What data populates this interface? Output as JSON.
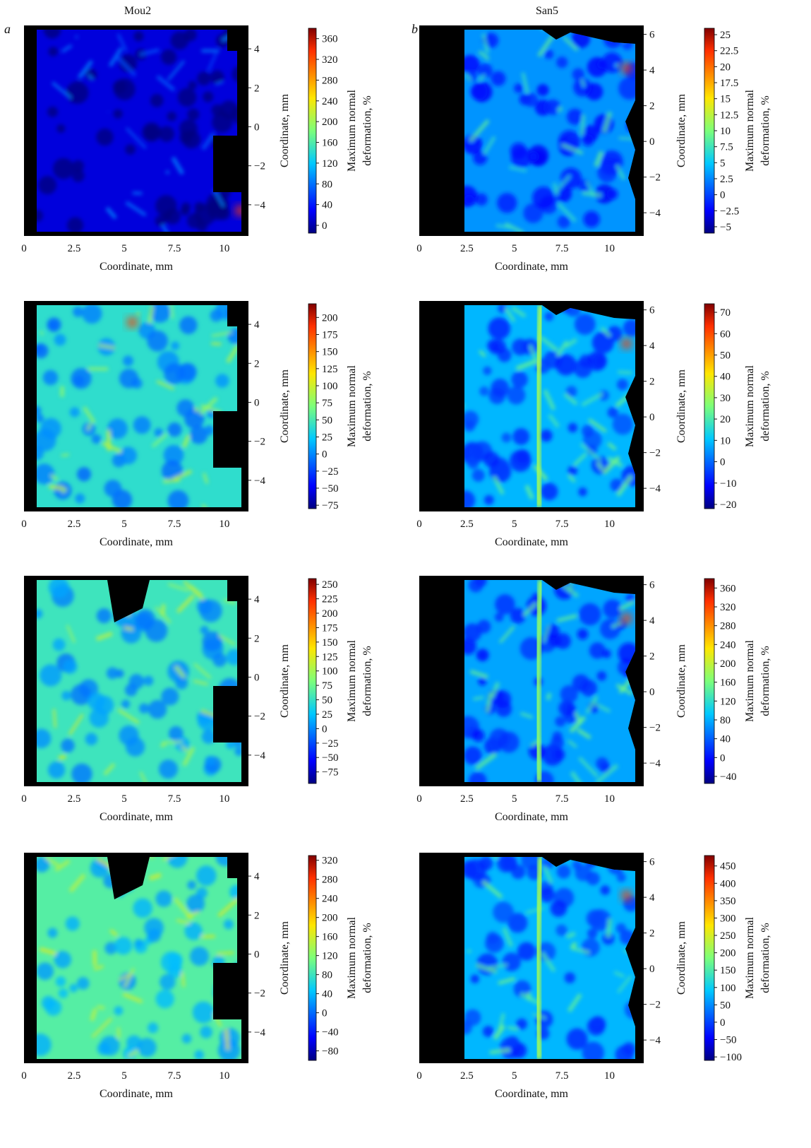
{
  "figure": {
    "columns": [
      {
        "letter": "a",
        "title": "Mou2"
      },
      {
        "letter": "b",
        "title": "San5"
      }
    ]
  },
  "chart_data": [
    {
      "type": "heatmap",
      "column": "a",
      "row": 1,
      "xlabel": "Coordinate, mm",
      "ylabel": "Coordinate, mm",
      "colorbar_label": [
        "Maximum normal",
        "deformation, %"
      ],
      "xticks": [
        "0",
        "2.5",
        "5",
        "7.5",
        "10"
      ],
      "yticks": [
        "4",
        "2",
        "0",
        "−2",
        "−4"
      ],
      "xlim": [
        0,
        11.2
      ],
      "ylim": [
        -5.6,
        5.2
      ],
      "colorbar_ticks": [
        "360",
        "320",
        "280",
        "240",
        "200",
        "160",
        "120",
        "80",
        "40",
        "0"
      ],
      "colorbar_range": [
        -15,
        380
      ],
      "map_level": 0.08,
      "map_pattern": "uniform low deformation (blue) across the specimen, local maximum (red) at the lower-right corner near x≈10.8 mm, y≈−4.3 mm"
    },
    {
      "type": "heatmap",
      "column": "b",
      "row": 1,
      "xlabel": "Coordinate, mm",
      "ylabel": "Coordinate, mm",
      "colorbar_label": [
        "Maximum normal",
        "deformation, %"
      ],
      "xticks": [
        "0",
        "2.5",
        "5",
        "7.5",
        "10"
      ],
      "yticks": [
        "6",
        "4",
        "2",
        "0",
        "−2",
        "−4"
      ],
      "xlim": [
        0,
        11.8
      ],
      "ylim": [
        -5.3,
        6.5
      ],
      "colorbar_ticks": [
        "25",
        "22.5",
        "20",
        "17.5",
        "15",
        "12.5",
        "10",
        "7.5",
        "5",
        "2.5",
        "0",
        "−2.5",
        "−5"
      ],
      "colorbar_range": [
        -6,
        26
      ],
      "map_level": 0.28,
      "map_pattern": "mostly light-blue low deformation, high deformation (yellow-red) along the right edge near x≈11 mm"
    },
    {
      "type": "heatmap",
      "column": "a",
      "row": 2,
      "xlabel": "Coordinate, mm",
      "ylabel": "Coordinate, mm",
      "colorbar_label": [
        "Maximum normal",
        "deformation, %"
      ],
      "xticks": [
        "0",
        "2.5",
        "5",
        "7.5",
        "10"
      ],
      "yticks": [
        "4",
        "2",
        "0",
        "−2",
        "−4"
      ],
      "xlim": [
        0,
        11.2
      ],
      "ylim": [
        -5.6,
        5.2
      ],
      "colorbar_ticks": [
        "200",
        "175",
        "150",
        "125",
        "100",
        "75",
        "50",
        "25",
        "0",
        "−25",
        "−50",
        "−75"
      ],
      "colorbar_range": [
        -80,
        220
      ],
      "map_level": 0.4,
      "map_pattern": "cellular network of deformation bands (cyan-yellow) around low-deformation cells, peak near x≈5.4 mm, y≈4.1 mm"
    },
    {
      "type": "heatmap",
      "column": "b",
      "row": 2,
      "xlabel": "Coordinate, mm",
      "ylabel": "Coordinate, mm",
      "colorbar_label": [
        "Maximum normal",
        "deformation, %"
      ],
      "xticks": [
        "0",
        "2.5",
        "5",
        "7.5",
        "10"
      ],
      "yticks": [
        "6",
        "4",
        "2",
        "0",
        "−2",
        "−4"
      ],
      "xlim": [
        0,
        11.8
      ],
      "ylim": [
        -5.3,
        6.5
      ],
      "colorbar_ticks": [
        "70",
        "60",
        "50",
        "40",
        "30",
        "20",
        "10",
        "0",
        "−10",
        "−20"
      ],
      "colorbar_range": [
        -22,
        74
      ],
      "map_level": 0.32,
      "map_pattern": "vertical deformation band along x≈6.3 mm, high deformation at the right edge"
    },
    {
      "type": "heatmap",
      "column": "a",
      "row": 3,
      "xlabel": "Coordinate, mm",
      "ylabel": "Coordinate, mm",
      "colorbar_label": [
        "Maximum normal",
        "deformation, %"
      ],
      "xticks": [
        "0",
        "2.5",
        "5",
        "7.5",
        "10"
      ],
      "yticks": [
        "4",
        "2",
        "0",
        "−2",
        "−4"
      ],
      "xlim": [
        0,
        11.2
      ],
      "ylim": [
        -5.6,
        5.2
      ],
      "colorbar_ticks": [
        "250",
        "225",
        "200",
        "175",
        "150",
        "125",
        "100",
        "75",
        "50",
        "25",
        "0",
        "−25",
        "−50",
        "−75"
      ],
      "colorbar_range": [
        -95,
        260
      ],
      "map_level": 0.42,
      "map_pattern": "cellular deformation network, missing region at the top between x≈4 and x≈6 mm, hot spots near the top edge"
    },
    {
      "type": "heatmap",
      "column": "b",
      "row": 3,
      "xlabel": "Coordinate, mm",
      "ylabel": "Coordinate, mm",
      "colorbar_label": [
        "Maximum normal",
        "deformation, %"
      ],
      "xticks": [
        "0",
        "2.5",
        "5",
        "7.5",
        "10"
      ],
      "yticks": [
        "6",
        "4",
        "2",
        "0",
        "−2",
        "−4"
      ],
      "xlim": [
        0,
        11.8
      ],
      "ylim": [
        -5.3,
        6.5
      ],
      "colorbar_ticks": [
        "360",
        "320",
        "280",
        "240",
        "200",
        "160",
        "120",
        "80",
        "40",
        "0",
        "−40"
      ],
      "colorbar_range": [
        -55,
        380
      ],
      "map_level": 0.3,
      "map_pattern": "vertical deformation band along x≈6.3 mm, network of weaker bands, hot spot near x≈10.8 mm, y≈4.1 mm"
    },
    {
      "type": "heatmap",
      "column": "a",
      "row": 4,
      "xlabel": "Coordinate, mm",
      "ylabel": "Coordinate, mm",
      "colorbar_label": [
        "Maximum normal",
        "deformation, %"
      ],
      "xticks": [
        "0",
        "2.5",
        "5",
        "7.5",
        "10"
      ],
      "yticks": [
        "4",
        "2",
        "0",
        "−2",
        "−4"
      ],
      "xlim": [
        0,
        11.2
      ],
      "ylim": [
        -5.6,
        5.2
      ],
      "colorbar_ticks": [
        "320",
        "280",
        "240",
        "200",
        "160",
        "120",
        "80",
        "40",
        "0",
        "−40",
        "−80"
      ],
      "colorbar_range": [
        -100,
        330
      ],
      "map_level": 0.45,
      "map_pattern": "dense cellular deformation network (cyan-yellow), large missing region at the top-left"
    },
    {
      "type": "heatmap",
      "column": "b",
      "row": 4,
      "xlabel": "Coordinate, mm",
      "ylabel": "Coordinate, mm",
      "colorbar_label": [
        "Maximum normal",
        "deformation, %"
      ],
      "xticks": [
        "0",
        "2.5",
        "5",
        "7.5",
        "10"
      ],
      "yticks": [
        "6",
        "4",
        "2",
        "0",
        "−2",
        "−4"
      ],
      "xlim": [
        0,
        11.8
      ],
      "ylim": [
        -5.3,
        6.5
      ],
      "colorbar_ticks": [
        "450",
        "400",
        "350",
        "300",
        "250",
        "200",
        "150",
        "100",
        "50",
        "0",
        "−50",
        "−100"
      ],
      "colorbar_range": [
        -110,
        480
      ],
      "map_level": 0.32,
      "map_pattern": "pronounced vertical deformation band (yellow) along x≈6.3 mm, cellular network of weaker bands"
    }
  ]
}
